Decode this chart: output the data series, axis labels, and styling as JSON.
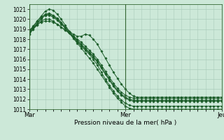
{
  "xlabel": "Pression niveau de la mer( hPa )",
  "ylim": [
    1011,
    1021.5
  ],
  "yticks": [
    1011,
    1012,
    1013,
    1014,
    1015,
    1016,
    1017,
    1018,
    1019,
    1020,
    1021
  ],
  "xtick_labels": [
    "Mar",
    "Mer",
    "Jeu"
  ],
  "xtick_positions": [
    0,
    48,
    96
  ],
  "vlines": [
    0,
    48,
    96
  ],
  "bg_color": "#cce8d8",
  "grid_color": "#aaccbb",
  "line_color": "#1a5c28",
  "series": [
    [
      1018.5,
      1019.0,
      1019.5,
      1020.0,
      1020.4,
      1020.5,
      1020.3,
      1020.0,
      1019.6,
      1019.1,
      1018.6,
      1018.1,
      1017.6,
      1017.1,
      1016.6,
      1016.1,
      1015.6,
      1015.0,
      1014.4,
      1013.8,
      1013.2,
      1012.6,
      1012.1,
      1011.7,
      1011.3,
      1011.1,
      1011.0,
      1011.0,
      1011.0,
      1011.0,
      1011.0,
      1011.0,
      1011.0,
      1011.0,
      1011.0,
      1011.0,
      1011.0,
      1011.0,
      1011.0,
      1011.0,
      1011.0,
      1011.0,
      1011.0,
      1011.0,
      1011.0,
      1011.0,
      1011.0,
      1011.0,
      1011.0
    ],
    [
      1018.8,
      1019.3,
      1019.8,
      1020.2,
      1020.5,
      1020.6,
      1020.4,
      1020.1,
      1019.7,
      1019.2,
      1018.7,
      1018.2,
      1017.7,
      1017.3,
      1016.9,
      1016.5,
      1016.0,
      1015.4,
      1014.7,
      1014.0,
      1013.4,
      1012.8,
      1012.3,
      1011.9,
      1011.6,
      1011.4,
      1011.3,
      1011.3,
      1011.3,
      1011.3,
      1011.3,
      1011.3,
      1011.3,
      1011.3,
      1011.3,
      1011.3,
      1011.3,
      1011.3,
      1011.3,
      1011.3,
      1011.3,
      1011.3,
      1011.3,
      1011.3,
      1011.3,
      1011.3,
      1011.3,
      1011.3,
      1011.3
    ],
    [
      1018.9,
      1019.2,
      1019.5,
      1019.7,
      1019.8,
      1019.8,
      1019.7,
      1019.5,
      1019.2,
      1018.9,
      1018.6,
      1018.2,
      1017.9,
      1017.5,
      1017.1,
      1016.7,
      1016.3,
      1015.8,
      1015.2,
      1014.6,
      1014.0,
      1013.4,
      1012.9,
      1012.5,
      1012.2,
      1012.0,
      1011.9,
      1011.9,
      1011.9,
      1011.9,
      1011.9,
      1011.9,
      1011.9,
      1011.9,
      1011.9,
      1011.9,
      1011.9,
      1011.9,
      1011.9,
      1011.9,
      1011.9,
      1011.9,
      1011.9,
      1011.9,
      1011.9,
      1011.9,
      1011.9,
      1011.9,
      1011.9
    ],
    [
      1018.7,
      1019.2,
      1019.8,
      1020.3,
      1020.8,
      1021.0,
      1020.9,
      1020.5,
      1020.0,
      1019.4,
      1018.8,
      1018.3,
      1017.8,
      1017.4,
      1017.0,
      1016.6,
      1016.2,
      1015.7,
      1015.1,
      1014.5,
      1013.9,
      1013.3,
      1012.8,
      1012.4,
      1012.1,
      1011.9,
      1011.8,
      1011.8,
      1011.8,
      1011.8,
      1011.8,
      1011.8,
      1011.8,
      1011.8,
      1011.8,
      1011.8,
      1011.8,
      1011.8,
      1011.8,
      1011.8,
      1011.8,
      1011.8,
      1011.8,
      1011.8,
      1011.8,
      1011.8,
      1011.8,
      1011.8,
      1011.8
    ],
    [
      1018.6,
      1019.1,
      1019.6,
      1020.1,
      1020.4,
      1020.4,
      1020.2,
      1019.9,
      1019.5,
      1019.1,
      1018.8,
      1018.5,
      1018.3,
      1018.3,
      1018.5,
      1018.4,
      1018.0,
      1017.5,
      1016.8,
      1016.1,
      1015.4,
      1014.7,
      1014.1,
      1013.5,
      1013.0,
      1012.6,
      1012.3,
      1012.2,
      1012.2,
      1012.2,
      1012.2,
      1012.2,
      1012.2,
      1012.2,
      1012.2,
      1012.2,
      1012.2,
      1012.2,
      1012.2,
      1012.2,
      1012.2,
      1012.2,
      1012.2,
      1012.2,
      1012.2,
      1012.2,
      1012.2,
      1012.2,
      1012.2
    ],
    [
      1018.5,
      1019.0,
      1019.4,
      1019.8,
      1020.0,
      1020.0,
      1019.8,
      1019.5,
      1019.2,
      1018.9,
      1018.6,
      1018.3,
      1018.0,
      1017.7,
      1017.3,
      1016.9,
      1016.5,
      1016.0,
      1015.4,
      1014.8,
      1014.2,
      1013.6,
      1013.1,
      1012.7,
      1012.4,
      1012.2,
      1012.1,
      1012.1,
      1012.1,
      1012.1,
      1012.1,
      1012.1,
      1012.1,
      1012.1,
      1012.1,
      1012.1,
      1012.1,
      1012.1,
      1012.1,
      1012.1,
      1012.1,
      1012.1,
      1012.1,
      1012.1,
      1012.1,
      1012.1,
      1012.1,
      1012.1,
      1012.1
    ]
  ]
}
